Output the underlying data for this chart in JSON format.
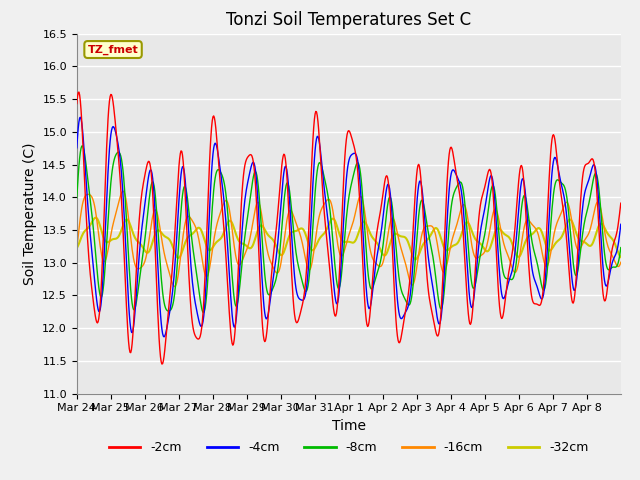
{
  "title": "Tonzi Soil Temperatures Set C",
  "xlabel": "Time",
  "ylabel": "Soil Temperature (C)",
  "ylim": [
    11.0,
    16.5
  ],
  "yticks": [
    11.0,
    11.5,
    12.0,
    12.5,
    13.0,
    13.5,
    14.0,
    14.5,
    15.0,
    15.5,
    16.0,
    16.5
  ],
  "legend_label": "TZ_fmet",
  "legend_bg": "#ffffcc",
  "legend_border": "#ccaa00",
  "colors": {
    "-2cm": "#ff0000",
    "-4cm": "#0000ff",
    "-8cm": "#00bb00",
    "-16cm": "#ff8800",
    "-32cm": "#cccc00"
  },
  "line_labels": [
    "-2cm",
    "-4cm",
    "-8cm",
    "-16cm",
    "-32cm"
  ],
  "x_tick_labels": [
    "Mar 24",
    "Mar 25",
    "Mar 26",
    "Mar 27",
    "Mar 28",
    "Mar 29",
    "Mar 30",
    "Mar 31",
    "Apr 1",
    "Apr 2",
    "Apr 3",
    "Apr 4",
    "Apr 5",
    "Apr 6",
    "Apr 7",
    "Apr 8"
  ],
  "bg_color": "#e8e8e8",
  "grid_color": "#ffffff",
  "title_fontsize": 12,
  "axis_label_fontsize": 10,
  "tick_fontsize": 8
}
